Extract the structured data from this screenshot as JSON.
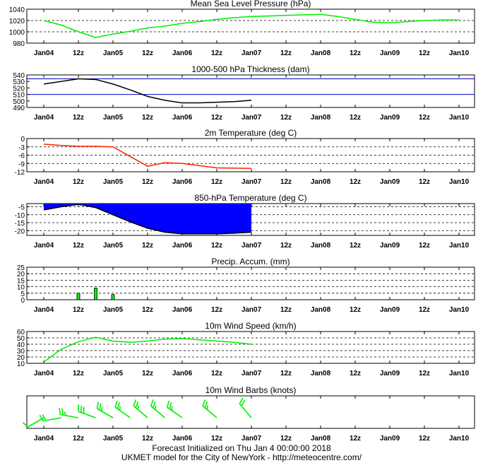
{
  "x_labels": [
    "Jan04",
    "12z",
    "Jan05",
    "12z",
    "Jan06",
    "12z",
    "Jan07",
    "12z",
    "Jan08",
    "12z",
    "Jan09",
    "12z",
    "Jan10"
  ],
  "chart_data": [
    {
      "id": "mslp",
      "type": "line",
      "title": "Mean Sea Level Pressure (hPa)",
      "ylim": [
        980,
        1040
      ],
      "yticks": [
        980,
        1000,
        1020,
        1040
      ],
      "grid": [
        1000,
        1020
      ],
      "x_unit": "hours since Jan04 00z",
      "series": [
        {
          "name": "MSLP",
          "color": "#00ee00",
          "x": [
            0,
            6,
            12,
            18,
            24,
            30,
            36,
            42,
            48,
            54,
            60,
            66,
            72,
            78,
            84,
            90,
            96,
            102,
            108,
            114,
            120,
            126,
            132,
            138,
            144
          ],
          "values": [
            1020,
            1012,
            1000,
            990,
            996,
            1001,
            1007,
            1010,
            1015,
            1018,
            1022,
            1025,
            1027,
            1028,
            1029,
            1030,
            1031,
            1027,
            1022,
            1017,
            1016,
            1018,
            1020,
            1021,
            1021
          ]
        }
      ]
    },
    {
      "id": "thickness",
      "type": "line",
      "title": "1000-500 hPa Thickness (dam)",
      "ylim": [
        490,
        540
      ],
      "yticks": [
        490,
        500,
        510,
        520,
        530,
        540
      ],
      "ref_lines": [
        {
          "value": 534,
          "color": "#0000cc"
        },
        {
          "value": 510,
          "color": "#0000cc"
        }
      ],
      "series": [
        {
          "name": "Thickness",
          "color": "#000000",
          "x": [
            0,
            6,
            12,
            18,
            24,
            30,
            36,
            42,
            48,
            54,
            60,
            66,
            72
          ],
          "values": [
            526,
            530,
            534,
            533,
            526,
            517,
            507,
            501,
            497,
            497,
            498,
            499,
            501
          ]
        }
      ]
    },
    {
      "id": "t2m",
      "type": "line",
      "title": "2m Temperature (deg C)",
      "ylim": [
        -12,
        0
      ],
      "yticks": [
        -12,
        -9,
        -6,
        -3,
        0
      ],
      "grid": [
        -3,
        -6,
        -9
      ],
      "series": [
        {
          "name": "2m Temperature",
          "color": "#ff2200",
          "x": [
            0,
            6,
            12,
            18,
            24,
            30,
            36,
            42,
            48,
            54,
            60,
            66,
            72
          ],
          "values": [
            -2,
            -2.5,
            -2.8,
            -2.8,
            -3,
            -6.5,
            -10,
            -8.7,
            -9,
            -9.8,
            -10.6,
            -10.7,
            -10.8
          ]
        }
      ]
    },
    {
      "id": "t850",
      "type": "area",
      "title": "850-hPa Temperature (deg C)",
      "ylim": [
        -23,
        -3
      ],
      "yticks": [
        -20,
        -15,
        -10,
        -5
      ],
      "grid": [
        -5,
        -10,
        -15,
        -20
      ],
      "fill_top": -3,
      "fill_color": "#0000ff",
      "series": [
        {
          "name": "850-hPa Temperature",
          "color": "#000000",
          "x": [
            0,
            6,
            12,
            18,
            24,
            30,
            36,
            42,
            48,
            54,
            60,
            66,
            72
          ],
          "values": [
            -7,
            -5,
            -3.5,
            -5.5,
            -10,
            -14.5,
            -18.5,
            -21,
            -22,
            -22,
            -22,
            -21.6,
            -21
          ]
        }
      ]
    },
    {
      "id": "precip",
      "type": "bar",
      "title": "Precip. Accum. (mm)",
      "ylim": [
        0,
        25
      ],
      "yticks": [
        0,
        5,
        10,
        15,
        20,
        25
      ],
      "grid": [
        5,
        10,
        15,
        20
      ],
      "bar_color": "#00ee00",
      "series": [
        {
          "name": "Precip. Accum.",
          "x": [
            12,
            18,
            24
          ],
          "values": [
            5,
            9,
            4
          ]
        }
      ]
    },
    {
      "id": "wind_speed",
      "type": "line",
      "title": "10m Wind Speed (km/h)",
      "ylim": [
        10,
        60
      ],
      "yticks": [
        10,
        20,
        30,
        40,
        50,
        60
      ],
      "grid": [
        20,
        30,
        40,
        50
      ],
      "series": [
        {
          "name": "10m Wind Speed",
          "color": "#00ee00",
          "x": [
            0,
            6,
            12,
            18,
            24,
            30,
            36,
            42,
            48,
            54,
            60,
            66,
            72
          ],
          "values": [
            12,
            32,
            44,
            51,
            45,
            43,
            45,
            48,
            49,
            47,
            45,
            43,
            40
          ]
        }
      ]
    },
    {
      "id": "wind_barbs",
      "type": "barbs",
      "title": "10m Wind Barbs  (knots)",
      "barb_color": "#00ee00",
      "series": [
        {
          "name": "10m Wind Barbs",
          "x": [
            0,
            6,
            12,
            18,
            24,
            30,
            36,
            42,
            48,
            60,
            72
          ],
          "direction_deg": [
            240,
            260,
            280,
            290,
            300,
            305,
            310,
            310,
            305,
            310,
            320
          ],
          "speed_kt": [
            10,
            20,
            25,
            30,
            25,
            25,
            25,
            25,
            25,
            25,
            20
          ]
        }
      ]
    }
  ],
  "footer": {
    "line1": "Forecast Initialized on Thu Jan  4 00:00:00 2018",
    "line2": "UKMET model for the City of NewYork - http://meteocentre.com/"
  }
}
